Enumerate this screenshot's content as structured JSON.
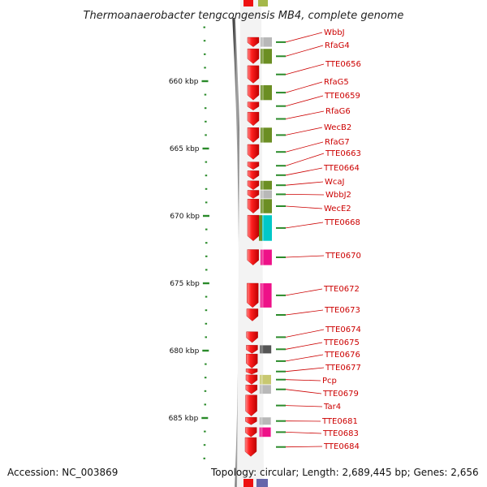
{
  "header": {
    "title": "Thermoanaerobacter tengcongensis MB4, complete genome"
  },
  "footer": {
    "accession": "Accession: NC_003869",
    "summary": "Topology: circular; Length: 2,689,445 bp; Genes: 2,656"
  },
  "colors": {
    "gene_red": "#ee1111",
    "olive": "#6b8e23",
    "olive_light": "#a5b84a",
    "gray": "#b8b8b8",
    "dark_gray": "#555555",
    "magenta": "#ee1188",
    "cyan": "#00c8c8",
    "khaki": "#c8c870",
    "purple": "#6666aa",
    "label_red": "#cc0000",
    "tick_green": "#2a8a2a"
  },
  "scale": {
    "labels": [
      {
        "text": "660 kbp",
        "kbp": 660
      },
      {
        "text": "665 kbp",
        "kbp": 665
      },
      {
        "text": "670 kbp",
        "kbp": 670
      },
      {
        "text": "675 kbp",
        "kbp": 675
      },
      {
        "text": "680 kbp",
        "kbp": 680
      },
      {
        "text": "685 kbp",
        "kbp": 685
      }
    ]
  },
  "genes": [
    {
      "label": "WbbJ",
      "start_kbp": 656.75,
      "end_kbp": 657.45,
      "cog": "gray"
    },
    {
      "label": "RfaG4",
      "start_kbp": 657.6,
      "end_kbp": 658.7,
      "cog": "olive"
    },
    {
      "label": "TTE0656",
      "start_kbp": 658.85,
      "end_kbp": 660.15,
      "cog": "none"
    },
    {
      "label": "RfaG5",
      "start_kbp": 660.3,
      "end_kbp": 661.4,
      "cog": "olive"
    },
    {
      "label": "TTE0659",
      "start_kbp": 661.55,
      "end_kbp": 662.15,
      "cog": "none"
    },
    {
      "label": "RfaG6",
      "start_kbp": 662.3,
      "end_kbp": 663.3,
      "cog": "none"
    },
    {
      "label": "WecB2",
      "start_kbp": 663.45,
      "end_kbp": 664.55,
      "cog": "olive"
    },
    {
      "label": "RfaG7",
      "start_kbp": 664.7,
      "end_kbp": 665.8,
      "cog": "none"
    },
    {
      "label": "TTE0663",
      "start_kbp": 666.0,
      "end_kbp": 666.55,
      "cog": "none"
    },
    {
      "label": "TTE0664",
      "start_kbp": 666.65,
      "end_kbp": 667.3,
      "cog": "none"
    },
    {
      "label": "WcaJ",
      "start_kbp": 667.4,
      "end_kbp": 668.05,
      "cog": "olive"
    },
    {
      "label": "WbbJ2",
      "start_kbp": 668.1,
      "end_kbp": 668.7,
      "cog": "gray"
    },
    {
      "label": "WecE2",
      "start_kbp": 668.75,
      "end_kbp": 669.8,
      "cog": "olive"
    },
    {
      "label": "TTE0668",
      "start_kbp": 669.95,
      "end_kbp": 671.85,
      "cog": "cyan"
    },
    {
      "label": "TTE0670",
      "start_kbp": 672.5,
      "end_kbp": 673.65,
      "cog": "magenta"
    },
    {
      "label": "TTE0672",
      "start_kbp": 675.0,
      "end_kbp": 676.8,
      "cog": "magenta"
    },
    {
      "label": "TTE0673",
      "start_kbp": 676.9,
      "end_kbp": 677.8,
      "cog": "none"
    },
    {
      "label": "TTE0674",
      "start_kbp": 678.6,
      "end_kbp": 679.4,
      "cog": "none"
    },
    {
      "label": "TTE0675",
      "start_kbp": 679.6,
      "end_kbp": 680.2,
      "cog": "dark_gray"
    },
    {
      "label": "TTE0676",
      "start_kbp": 680.25,
      "end_kbp": 681.3,
      "cog": "none"
    },
    {
      "label": "TTE0677",
      "start_kbp": 681.35,
      "end_kbp": 681.75,
      "cog": "none"
    },
    {
      "label": "Pcp",
      "start_kbp": 681.8,
      "end_kbp": 682.5,
      "cog": "khaki"
    },
    {
      "label": "TTE0679",
      "start_kbp": 682.55,
      "end_kbp": 683.2,
      "cog": "gray"
    },
    {
      "label": "Tar4",
      "start_kbp": 683.3,
      "end_kbp": 684.85,
      "cog": "none"
    },
    {
      "label": "TTE0681",
      "start_kbp": 684.95,
      "end_kbp": 685.5,
      "cog": "gray"
    },
    {
      "label": "TTE0683",
      "start_kbp": 685.7,
      "end_kbp": 686.4,
      "cog": "magenta"
    },
    {
      "label": "TTE0684",
      "start_kbp": 686.45,
      "end_kbp": 687.85,
      "cog": "none"
    }
  ]
}
